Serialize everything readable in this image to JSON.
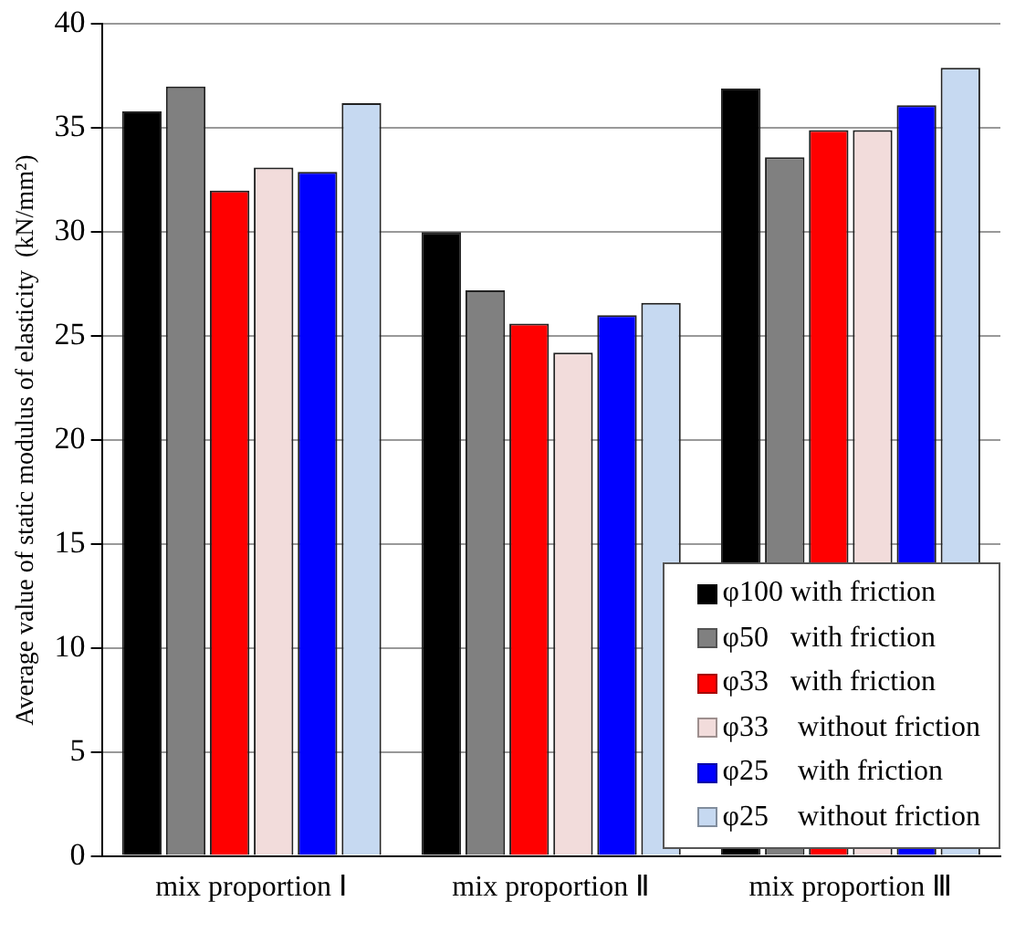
{
  "chart_data": {
    "type": "bar",
    "ylabel": "Average value of static modulus of elasticity  (kN/mm²)",
    "categories": [
      "mix proportion Ⅰ",
      "mix proportion Ⅱ",
      "mix proportion Ⅲ"
    ],
    "series": [
      {
        "name": "φ100 with friction",
        "color": "#000000",
        "values": [
          35.8,
          30.0,
          36.9
        ]
      },
      {
        "name": "φ50   with friction",
        "color": "#808080",
        "values": [
          37.0,
          27.2,
          33.6
        ]
      },
      {
        "name": "φ33   with friction",
        "color": "#ff0000",
        "values": [
          32.0,
          25.6,
          34.9
        ]
      },
      {
        "name": "φ33    without friction",
        "color": "#f2dcdb",
        "values": [
          33.1,
          24.2,
          34.9
        ]
      },
      {
        "name": "φ25    with friction",
        "color": "#0000ff",
        "values": [
          32.9,
          26.0,
          36.1
        ]
      },
      {
        "name": "φ25    without friction",
        "color": "#c6d9f1",
        "values": [
          36.2,
          26.6,
          37.9
        ]
      }
    ],
    "ylim": [
      0,
      40
    ],
    "yticks": [
      0,
      5,
      10,
      15,
      20,
      25,
      30,
      35,
      40
    ],
    "grid": "y",
    "legend": "bottom right"
  }
}
